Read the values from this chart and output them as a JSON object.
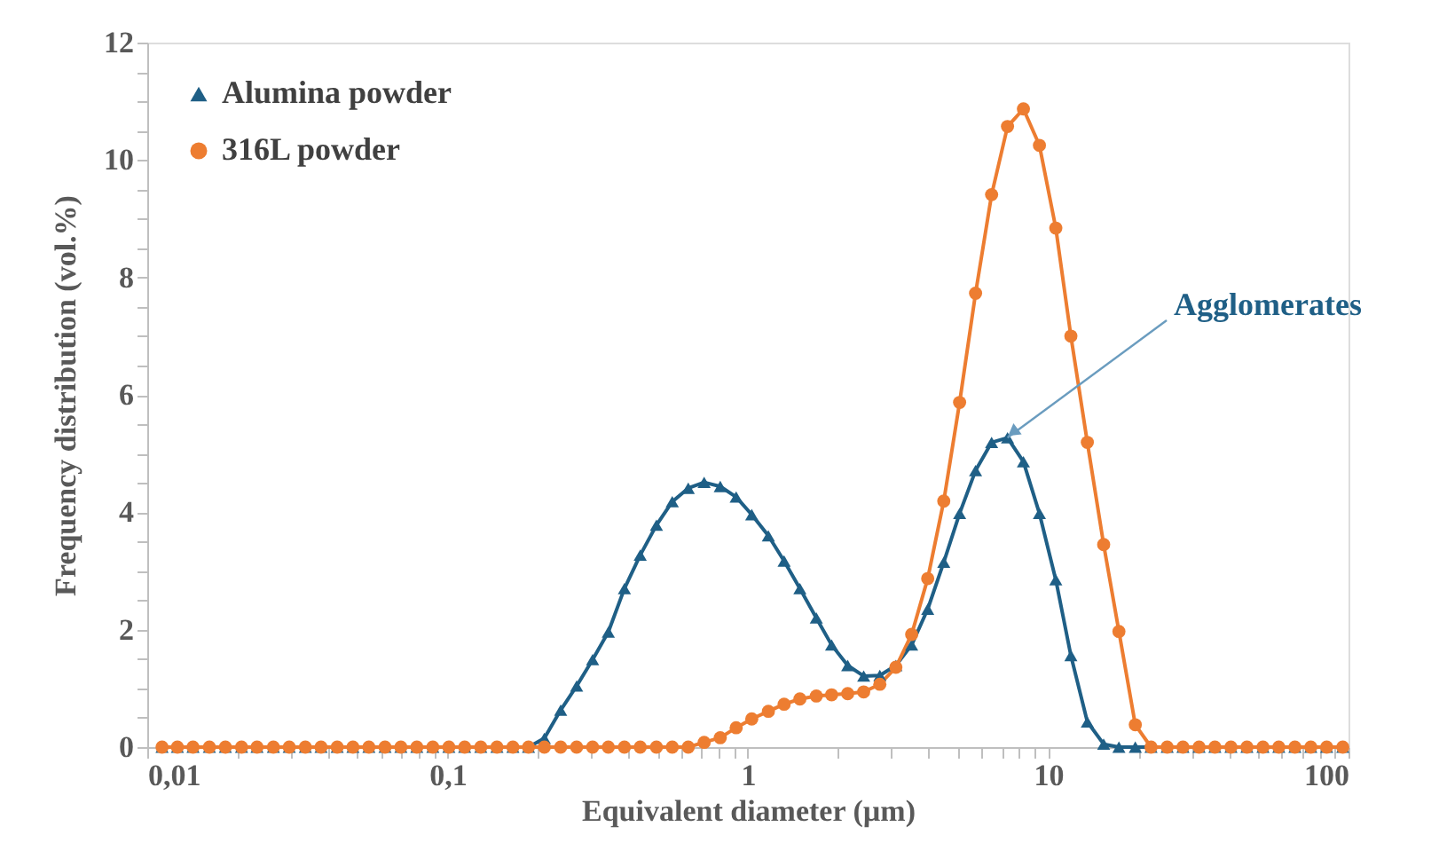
{
  "chart_data": {
    "type": "line",
    "xlabel": "Equivalent diameter (µm)",
    "ylabel": "Frequency distribution (vol.%)",
    "log": "x",
    "grid": false,
    "legend": "top left",
    "x": [
      0.0112,
      0.0126,
      0.0142,
      0.0161,
      0.0182,
      0.0206,
      0.0232,
      0.0263,
      0.0297,
      0.0336,
      0.0379,
      0.0429,
      0.0484,
      0.0547,
      0.0619,
      0.0699,
      0.079,
      0.0893,
      0.101,
      0.114,
      0.129,
      0.146,
      0.165,
      0.186,
      0.21,
      0.238,
      0.269,
      0.304,
      0.343,
      0.388,
      0.438,
      0.496,
      0.56,
      0.633,
      0.715,
      0.809,
      0.914,
      1.03,
      1.17,
      1.32,
      1.49,
      1.69,
      1.9,
      2.15,
      2.43,
      2.75,
      3.11,
      3.51,
      3.97,
      4.49,
      5.07,
      5.73,
      6.48,
      7.32,
      8.27,
      9.35,
      10.6,
      11.9,
      13.5,
      15.3,
      17.2,
      19.5,
      22,
      24.9,
      28.1,
      31.8,
      35.9,
      40.6,
      45.9,
      51.9,
      58.6,
      66.3,
      74.9,
      84.6,
      95.7
    ],
    "series": [
      {
        "name": "Alumina powder",
        "color": "#1f5f86",
        "marker": "triangle",
        "values": [
          0,
          0,
          0,
          0,
          0,
          0,
          0,
          0,
          0,
          0,
          0,
          0,
          0,
          0,
          0,
          0,
          0,
          0,
          0,
          0,
          0,
          0,
          0,
          0,
          0.15,
          0.63,
          1.04,
          1.49,
          1.96,
          2.7,
          3.27,
          3.78,
          4.18,
          4.41,
          4.51,
          4.44,
          4.26,
          3.96,
          3.6,
          3.17,
          2.7,
          2.2,
          1.74,
          1.39,
          1.21,
          1.22,
          1.39,
          1.74,
          2.35,
          3.15,
          3.98,
          4.71,
          5.19,
          5.27,
          4.86,
          3.98,
          2.85,
          1.56,
          0.43,
          0.05,
          0,
          0,
          0,
          0,
          0,
          0,
          0,
          0,
          0,
          0,
          0,
          0,
          0,
          0,
          0
        ]
      },
      {
        "name": "316L powder",
        "color": "#ed7d31",
        "marker": "circle",
        "values": [
          0,
          0,
          0,
          0,
          0,
          0,
          0,
          0,
          0,
          0,
          0,
          0,
          0,
          0,
          0,
          0,
          0,
          0,
          0,
          0,
          0,
          0,
          0,
          0,
          0,
          0,
          0,
          0,
          0,
          0,
          0,
          0,
          0,
          0,
          0.08,
          0.16,
          0.33,
          0.48,
          0.61,
          0.73,
          0.82,
          0.87,
          0.89,
          0.91,
          0.94,
          1.07,
          1.36,
          1.92,
          2.87,
          4.19,
          5.87,
          7.73,
          9.41,
          10.57,
          10.87,
          10.25,
          8.84,
          7.0,
          5.19,
          3.45,
          1.97,
          0.38,
          0,
          0,
          0,
          0,
          0,
          0,
          0,
          0,
          0,
          0,
          0,
          0,
          0
        ]
      }
    ],
    "xlim": [
      0.01,
      100
    ],
    "xticks": [
      {
        "value": 0.01,
        "label": "0,01"
      },
      {
        "value": 0.02,
        "label": null
      },
      {
        "value": 0.03,
        "label": null
      },
      {
        "value": 0.04,
        "label": null
      },
      {
        "value": 0.05,
        "label": null
      },
      {
        "value": 0.06,
        "label": null
      },
      {
        "value": 0.07,
        "label": null
      },
      {
        "value": 0.08,
        "label": null
      },
      {
        "value": 0.09,
        "label": null
      },
      {
        "value": 0.1,
        "label": "0,1"
      },
      {
        "value": 0.2,
        "label": null
      },
      {
        "value": 0.3,
        "label": null
      },
      {
        "value": 0.4,
        "label": null
      },
      {
        "value": 0.5,
        "label": null
      },
      {
        "value": 0.6,
        "label": null
      },
      {
        "value": 0.7,
        "label": null
      },
      {
        "value": 0.8,
        "label": null
      },
      {
        "value": 0.9,
        "label": null
      },
      1,
      {
        "value": 2,
        "label": null
      },
      {
        "value": 3,
        "label": null
      },
      {
        "value": 4,
        "label": null
      },
      {
        "value": 5,
        "label": null
      },
      {
        "value": 6,
        "label": null
      },
      {
        "value": 7,
        "label": null
      },
      {
        "value": 8,
        "label": null
      },
      {
        "value": 9,
        "label": null
      },
      10,
      {
        "value": 20,
        "label": null
      },
      {
        "value": 30,
        "label": null
      },
      {
        "value": 40,
        "label": null
      },
      {
        "value": 50,
        "label": null
      },
      {
        "value": 60,
        "label": null
      },
      {
        "value": 70,
        "label": null
      },
      {
        "value": 80,
        "label": null
      },
      {
        "value": 90,
        "label": null
      },
      100
    ],
    "ylim": [
      0,
      12
    ],
    "yticks": [
      0,
      {
        "value": 0.5,
        "label": null
      },
      {
        "value": 1,
        "label": null
      },
      {
        "value": 1.5,
        "label": null
      },
      2,
      {
        "value": 2.5,
        "label": null
      },
      {
        "value": 3,
        "label": null
      },
      {
        "value": 3.5,
        "label": null
      },
      4,
      {
        "value": 4.5,
        "label": null
      },
      {
        "value": 5,
        "label": null
      },
      {
        "value": 5.5,
        "label": null
      },
      6,
      {
        "value": 6.5,
        "label": null
      },
      {
        "value": 7,
        "label": null
      },
      {
        "value": 7.5,
        "label": null
      },
      8,
      {
        "value": 8.5,
        "label": null
      },
      {
        "value": 9,
        "label": null
      },
      {
        "value": 9.5,
        "label": null
      },
      10,
      {
        "value": 10.5,
        "label": null
      },
      {
        "value": 11,
        "label": null
      },
      {
        "value": 11.5,
        "label": null
      },
      12
    ],
    "annotations": [
      {
        "text": "Agglomerates",
        "x": 7.32,
        "y": 5.27
      }
    ]
  }
}
